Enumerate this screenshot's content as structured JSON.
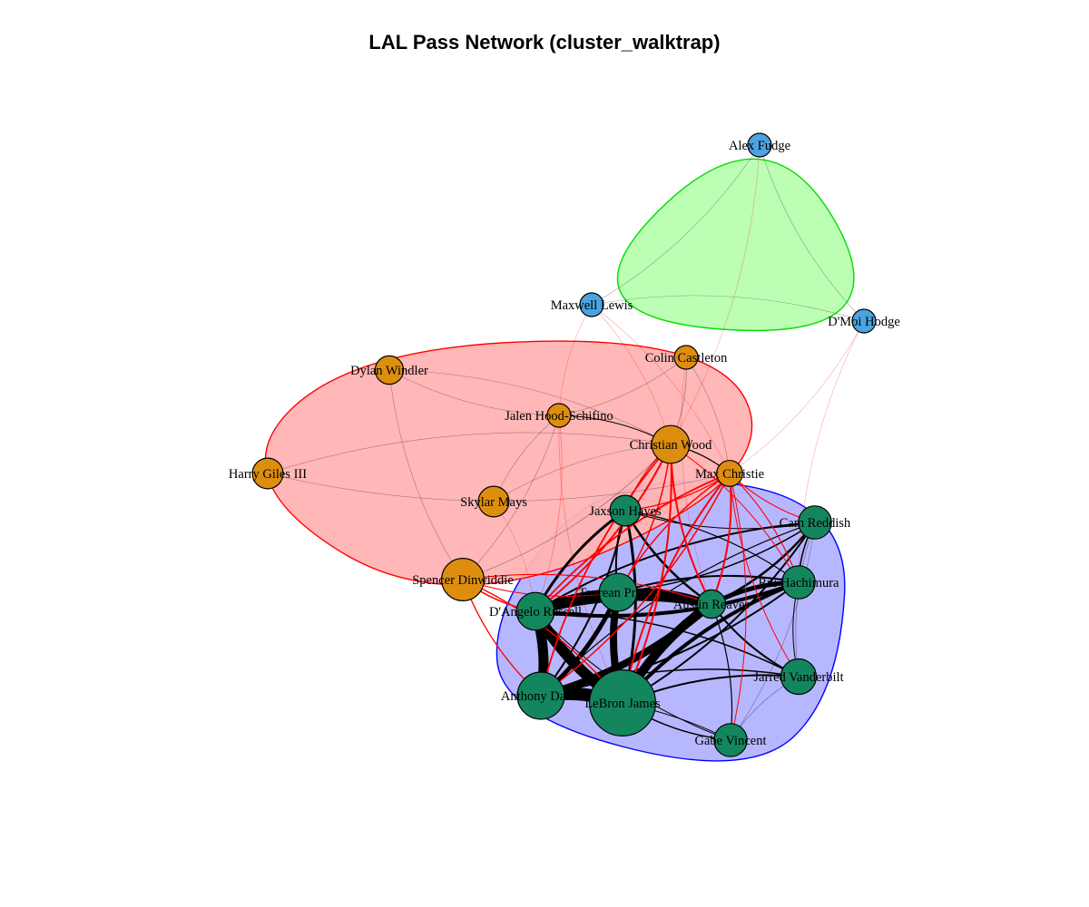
{
  "title": "LAL Pass Network (cluster_walktrap)",
  "colors": {
    "blue_cluster_node": "#13865E",
    "blue_cluster_fill": "#B3B3FF",
    "blue_cluster_border": "#0000FF",
    "red_cluster_node": "#DE8E0E",
    "red_cluster_fill": "#FFB3B3",
    "red_cluster_border": "#FF0000",
    "green_cluster_node": "#4BA3E0",
    "green_cluster_fill": "#B8FFB0",
    "green_cluster_border": "#00DD00",
    "intra_edge": "#000000",
    "inter_edge": "#FF0000"
  },
  "clusters": [
    {
      "id": "c1",
      "fill": "#B3B3FF",
      "border": "#0000FF",
      "members": [
        "jaxson",
        "cam",
        "taurean",
        "dangelo",
        "austin",
        "rui",
        "jarred",
        "anthony",
        "lebron",
        "gabe"
      ]
    },
    {
      "id": "c2",
      "fill": "#FFB3B3",
      "border": "#FF0000",
      "members": [
        "dylan",
        "colin",
        "jalen",
        "christian",
        "max",
        "harry",
        "skylar",
        "spencer"
      ]
    },
    {
      "id": "c3",
      "fill": "#B8FFB0",
      "border": "#00DD00",
      "members": [
        "alex",
        "maxwell",
        "dmoi"
      ]
    }
  ],
  "nodes": [
    {
      "id": "alex",
      "label": "Alex Fudge",
      "cluster": "c3",
      "size": 1
    },
    {
      "id": "maxwell",
      "label": "Maxwell Lewis",
      "cluster": "c3",
      "size": 1
    },
    {
      "id": "dmoi",
      "label": "D'Moi Hodge",
      "cluster": "c3",
      "size": 1
    },
    {
      "id": "colin",
      "label": "Colin Castleton",
      "cluster": "c2",
      "size": 1
    },
    {
      "id": "dylan",
      "label": "Dylan Windler",
      "cluster": "c2",
      "size": 1.2
    },
    {
      "id": "jalen",
      "label": "Jalen Hood-Schifino",
      "cluster": "c2",
      "size": 1
    },
    {
      "id": "christian",
      "label": "Christian Wood",
      "cluster": "c2",
      "size": 1.6
    },
    {
      "id": "max",
      "label": "Max Christie",
      "cluster": "c2",
      "size": 1.1
    },
    {
      "id": "harry",
      "label": "Harry Giles III",
      "cluster": "c2",
      "size": 1.3
    },
    {
      "id": "skylar",
      "label": "Skylar Mays",
      "cluster": "c2",
      "size": 1.3
    },
    {
      "id": "spencer",
      "label": "Spencer Dinwiddie",
      "cluster": "c2",
      "size": 1.8
    },
    {
      "id": "jaxson",
      "label": "Jaxson Hayes",
      "cluster": "c1",
      "size": 1.3
    },
    {
      "id": "cam",
      "label": "Cam Reddish",
      "cluster": "c1",
      "size": 1.4
    },
    {
      "id": "taurean",
      "label": "Taurean Prince",
      "cluster": "c1",
      "size": 1.6
    },
    {
      "id": "rui",
      "label": "Rui Hachimura",
      "cluster": "c1",
      "size": 1.4
    },
    {
      "id": "dangelo",
      "label": "D'Angelo Russell",
      "cluster": "c1",
      "size": 1.6
    },
    {
      "id": "austin",
      "label": "Austin Reaves",
      "cluster": "c1",
      "size": 1.2
    },
    {
      "id": "jarred",
      "label": "Jarred Vanderbilt",
      "cluster": "c1",
      "size": 1.5
    },
    {
      "id": "anthony",
      "label": "Anthony Davis",
      "cluster": "c1",
      "size": 2.0
    },
    {
      "id": "lebron",
      "label": "LeBron James",
      "cluster": "c1",
      "size": 2.8
    },
    {
      "id": "gabe",
      "label": "Gabe Vincent",
      "cluster": "c1",
      "size": 1.4
    }
  ],
  "edges": [
    {
      "source": "anthony",
      "target": "lebron",
      "weight": 14
    },
    {
      "source": "dangelo",
      "target": "lebron",
      "weight": 12
    },
    {
      "source": "dangelo",
      "target": "anthony",
      "weight": 11
    },
    {
      "source": "austin",
      "target": "lebron",
      "weight": 10
    },
    {
      "source": "dangelo",
      "target": "austin",
      "weight": 9
    },
    {
      "source": "taurean",
      "target": "lebron",
      "weight": 8
    },
    {
      "source": "austin",
      "target": "anthony",
      "weight": 8
    },
    {
      "source": "taurean",
      "target": "dangelo",
      "weight": 7
    },
    {
      "source": "taurean",
      "target": "austin",
      "weight": 6
    },
    {
      "source": "rui",
      "target": "austin",
      "weight": 5
    },
    {
      "source": "rui",
      "target": "dangelo",
      "weight": 4
    },
    {
      "source": "rui",
      "target": "lebron",
      "weight": 4
    },
    {
      "source": "taurean",
      "target": "anthony",
      "weight": 5
    },
    {
      "source": "jaxson",
      "target": "dangelo",
      "weight": 3
    },
    {
      "source": "jaxson",
      "target": "lebron",
      "weight": 3
    },
    {
      "source": "jaxson",
      "target": "austin",
      "weight": 2.5
    },
    {
      "source": "cam",
      "target": "austin",
      "weight": 2.5
    },
    {
      "source": "cam",
      "target": "dangelo",
      "weight": 2
    },
    {
      "source": "cam",
      "target": "lebron",
      "weight": 2
    },
    {
      "source": "jarred",
      "target": "lebron",
      "weight": 2
    },
    {
      "source": "jarred",
      "target": "austin",
      "weight": 2
    },
    {
      "source": "jarred",
      "target": "dangelo",
      "weight": 1.5
    },
    {
      "source": "gabe",
      "target": "lebron",
      "weight": 1.5
    },
    {
      "source": "gabe",
      "target": "austin",
      "weight": 1.2
    },
    {
      "source": "gabe",
      "target": "dangelo",
      "weight": 1
    },
    {
      "source": "rui",
      "target": "taurean",
      "weight": 2
    },
    {
      "source": "rui",
      "target": "anthony",
      "weight": 2
    },
    {
      "source": "cam",
      "target": "rui",
      "weight": 1.5
    },
    {
      "source": "cam",
      "target": "taurean",
      "weight": 1.5
    },
    {
      "source": "jaxson",
      "target": "taurean",
      "weight": 2
    },
    {
      "source": "jaxson",
      "target": "anthony",
      "weight": 2
    },
    {
      "source": "jarred",
      "target": "anthony",
      "weight": 1.5
    },
    {
      "source": "jarred",
      "target": "rui",
      "weight": 1
    },
    {
      "source": "gabe",
      "target": "anthony",
      "weight": 1
    },
    {
      "source": "gabe",
      "target": "jarred",
      "weight": 0.8
    },
    {
      "source": "cam",
      "target": "jarred",
      "weight": 0.8
    },
    {
      "source": "cam",
      "target": "gabe",
      "weight": 0.7
    },
    {
      "source": "cam",
      "target": "anthony",
      "weight": 1.2
    },
    {
      "source": "jaxson",
      "target": "rui",
      "weight": 1.2
    },
    {
      "source": "jaxson",
      "target": "cam",
      "weight": 1
    },
    {
      "source": "christian",
      "target": "dangelo",
      "weight": 2
    },
    {
      "source": "christian",
      "target": "austin",
      "weight": 2
    },
    {
      "source": "christian",
      "target": "lebron",
      "weight": 2
    },
    {
      "source": "christian",
      "target": "anthony",
      "weight": 1.8
    },
    {
      "source": "christian",
      "target": "taurean",
      "weight": 1.5
    },
    {
      "source": "christian",
      "target": "jaxson",
      "weight": 1.2
    },
    {
      "source": "christian",
      "target": "rui",
      "weight": 1
    },
    {
      "source": "max",
      "target": "lebron",
      "weight": 2
    },
    {
      "source": "max",
      "target": "austin",
      "weight": 2
    },
    {
      "source": "max",
      "target": "dangelo",
      "weight": 1.8
    },
    {
      "source": "max",
      "target": "anthony",
      "weight": 1.5
    },
    {
      "source": "max",
      "target": "taurean",
      "weight": 1.5
    },
    {
      "source": "max",
      "target": "jaxson",
      "weight": 1.2
    },
    {
      "source": "max",
      "target": "cam",
      "weight": 1.2
    },
    {
      "source": "max",
      "target": "rui",
      "weight": 1.2
    },
    {
      "source": "max",
      "target": "jarred",
      "weight": 1
    },
    {
      "source": "max",
      "target": "gabe",
      "weight": 1
    },
    {
      "source": "spencer",
      "target": "dangelo",
      "weight": 1.5
    },
    {
      "source": "spencer",
      "target": "lebron",
      "weight": 1.5
    },
    {
      "source": "spencer",
      "target": "anthony",
      "weight": 1.3
    },
    {
      "source": "spencer",
      "target": "austin",
      "weight": 1.2
    },
    {
      "source": "spencer",
      "target": "taurean",
      "weight": 1
    },
    {
      "source": "jalen",
      "target": "dangelo",
      "weight": 0.8
    },
    {
      "source": "jalen",
      "target": "lebron",
      "weight": 0.7
    },
    {
      "source": "skylar",
      "target": "dangelo",
      "weight": 0.6
    },
    {
      "source": "colin",
      "target": "austin",
      "weight": 0.6
    },
    {
      "source": "christian",
      "target": "max",
      "weight": 1.2
    },
    {
      "source": "christian",
      "target": "jalen",
      "weight": 1
    },
    {
      "source": "christian",
      "target": "spencer",
      "weight": 0.8
    },
    {
      "source": "christian",
      "target": "colin",
      "weight": 0.8
    },
    {
      "source": "jalen",
      "target": "spencer",
      "weight": 0.6
    },
    {
      "source": "jalen",
      "target": "skylar",
      "weight": 0.5
    },
    {
      "source": "jalen",
      "target": "dylan",
      "weight": 0.5
    },
    {
      "source": "jalen",
      "target": "colin",
      "weight": 0.5
    },
    {
      "source": "dylan",
      "target": "christian",
      "weight": 0.5
    },
    {
      "source": "dylan",
      "target": "spencer",
      "weight": 0.4
    },
    {
      "source": "harry",
      "target": "christian",
      "weight": 0.3
    },
    {
      "source": "harry",
      "target": "max",
      "weight": 0.3
    },
    {
      "source": "skylar",
      "target": "christian",
      "weight": 0.5
    },
    {
      "source": "max",
      "target": "colin",
      "weight": 0.5
    },
    {
      "source": "maxwell",
      "target": "christian",
      "weight": 0.4
    },
    {
      "source": "maxwell",
      "target": "jalen",
      "weight": 0.4
    },
    {
      "source": "maxwell",
      "target": "max",
      "weight": 0.3
    },
    {
      "source": "alex",
      "target": "dmoi",
      "weight": 0.3
    },
    {
      "source": "alex",
      "target": "maxwell",
      "weight": 0.3
    },
    {
      "source": "dmoi",
      "target": "maxwell",
      "weight": 0.3
    },
    {
      "source": "dmoi",
      "target": "max",
      "weight": 0.3
    },
    {
      "source": "dmoi",
      "target": "rui",
      "weight": 0.3
    },
    {
      "source": "alex",
      "target": "christian",
      "weight": 0.25
    }
  ]
}
